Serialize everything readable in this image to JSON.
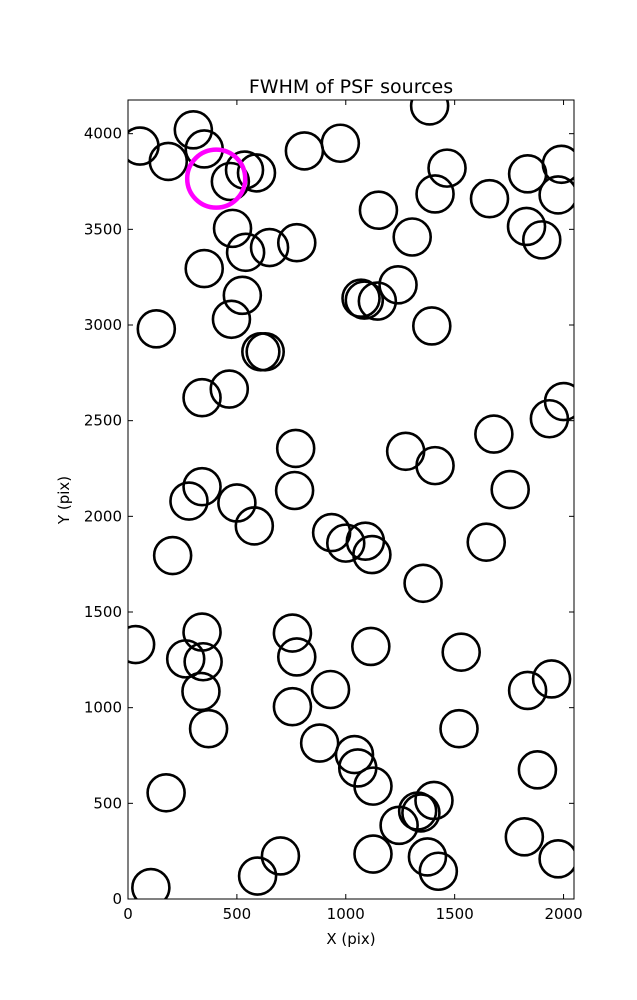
{
  "chart_data": {
    "type": "scatter",
    "title": "FWHM of PSF sources",
    "xlabel": "X (pix)",
    "ylabel": "Y (pix)",
    "xlim": [
      0,
      2048
    ],
    "ylim": [
      0,
      4176
    ],
    "xticks": [
      "0",
      "500",
      "1000",
      "1500",
      "2000"
    ],
    "yticks": [
      "0",
      "500",
      "1000",
      "1500",
      "2000",
      "2500",
      "3000",
      "3500",
      "4000"
    ],
    "grid": false,
    "marker": "open-circle",
    "marker_color": "#000000",
    "highlight_color": "#ff00ff",
    "highlight": {
      "x": 405,
      "y": 3765
    },
    "points": [
      {
        "x": 55,
        "y": 3935
      },
      {
        "x": 185,
        "y": 3855
      },
      {
        "x": 300,
        "y": 4020
      },
      {
        "x": 350,
        "y": 3920
      },
      {
        "x": 470,
        "y": 3750
      },
      {
        "x": 535,
        "y": 3810
      },
      {
        "x": 590,
        "y": 3795
      },
      {
        "x": 810,
        "y": 3910
      },
      {
        "x": 975,
        "y": 3950
      },
      {
        "x": 1385,
        "y": 4145
      },
      {
        "x": 1465,
        "y": 3820
      },
      {
        "x": 1410,
        "y": 3685
      },
      {
        "x": 1150,
        "y": 3600
      },
      {
        "x": 1660,
        "y": 3660
      },
      {
        "x": 1835,
        "y": 3790
      },
      {
        "x": 1990,
        "y": 3840
      },
      {
        "x": 1975,
        "y": 3680
      },
      {
        "x": 1830,
        "y": 3515
      },
      {
        "x": 1900,
        "y": 3445
      },
      {
        "x": 1305,
        "y": 3460
      },
      {
        "x": 480,
        "y": 3505
      },
      {
        "x": 540,
        "y": 3380
      },
      {
        "x": 650,
        "y": 3405
      },
      {
        "x": 775,
        "y": 3430
      },
      {
        "x": 350,
        "y": 3295
      },
      {
        "x": 1240,
        "y": 3210
      },
      {
        "x": 1070,
        "y": 3140
      },
      {
        "x": 1085,
        "y": 3130
      },
      {
        "x": 1145,
        "y": 3125
      },
      {
        "x": 525,
        "y": 3155
      },
      {
        "x": 130,
        "y": 2980
      },
      {
        "x": 475,
        "y": 3030
      },
      {
        "x": 1395,
        "y": 2995
      },
      {
        "x": 610,
        "y": 2860
      },
      {
        "x": 630,
        "y": 2860
      },
      {
        "x": 465,
        "y": 2665
      },
      {
        "x": 340,
        "y": 2620
      },
      {
        "x": 2000,
        "y": 2600
      },
      {
        "x": 1935,
        "y": 2510
      },
      {
        "x": 770,
        "y": 2355
      },
      {
        "x": 1275,
        "y": 2340
      },
      {
        "x": 1410,
        "y": 2265
      },
      {
        "x": 1680,
        "y": 2430
      },
      {
        "x": 1755,
        "y": 2140
      },
      {
        "x": 765,
        "y": 2135
      },
      {
        "x": 340,
        "y": 2155
      },
      {
        "x": 280,
        "y": 2080
      },
      {
        "x": 500,
        "y": 2070
      },
      {
        "x": 580,
        "y": 1950
      },
      {
        "x": 935,
        "y": 1915
      },
      {
        "x": 1000,
        "y": 1860
      },
      {
        "x": 1090,
        "y": 1870
      },
      {
        "x": 1120,
        "y": 1800
      },
      {
        "x": 1645,
        "y": 1865
      },
      {
        "x": 205,
        "y": 1795
      },
      {
        "x": 1355,
        "y": 1650
      },
      {
        "x": 35,
        "y": 1330
      },
      {
        "x": 340,
        "y": 1395
      },
      {
        "x": 755,
        "y": 1390
      },
      {
        "x": 1115,
        "y": 1320
      },
      {
        "x": 1530,
        "y": 1290
      },
      {
        "x": 265,
        "y": 1255
      },
      {
        "x": 345,
        "y": 1240
      },
      {
        "x": 775,
        "y": 1265
      },
      {
        "x": 930,
        "y": 1095
      },
      {
        "x": 335,
        "y": 1085
      },
      {
        "x": 1835,
        "y": 1090
      },
      {
        "x": 1945,
        "y": 1150
      },
      {
        "x": 755,
        "y": 1005
      },
      {
        "x": 370,
        "y": 890
      },
      {
        "x": 1520,
        "y": 890
      },
      {
        "x": 880,
        "y": 815
      },
      {
        "x": 1040,
        "y": 755
      },
      {
        "x": 1055,
        "y": 685
      },
      {
        "x": 1125,
        "y": 590
      },
      {
        "x": 1880,
        "y": 675
      },
      {
        "x": 175,
        "y": 555
      },
      {
        "x": 1330,
        "y": 460
      },
      {
        "x": 1345,
        "y": 450
      },
      {
        "x": 1405,
        "y": 515
      },
      {
        "x": 1245,
        "y": 385
      },
      {
        "x": 1820,
        "y": 325
      },
      {
        "x": 1125,
        "y": 235
      },
      {
        "x": 700,
        "y": 225
      },
      {
        "x": 1375,
        "y": 220
      },
      {
        "x": 595,
        "y": 120
      },
      {
        "x": 1425,
        "y": 145
      },
      {
        "x": 1975,
        "y": 210
      },
      {
        "x": 105,
        "y": 60
      }
    ]
  }
}
